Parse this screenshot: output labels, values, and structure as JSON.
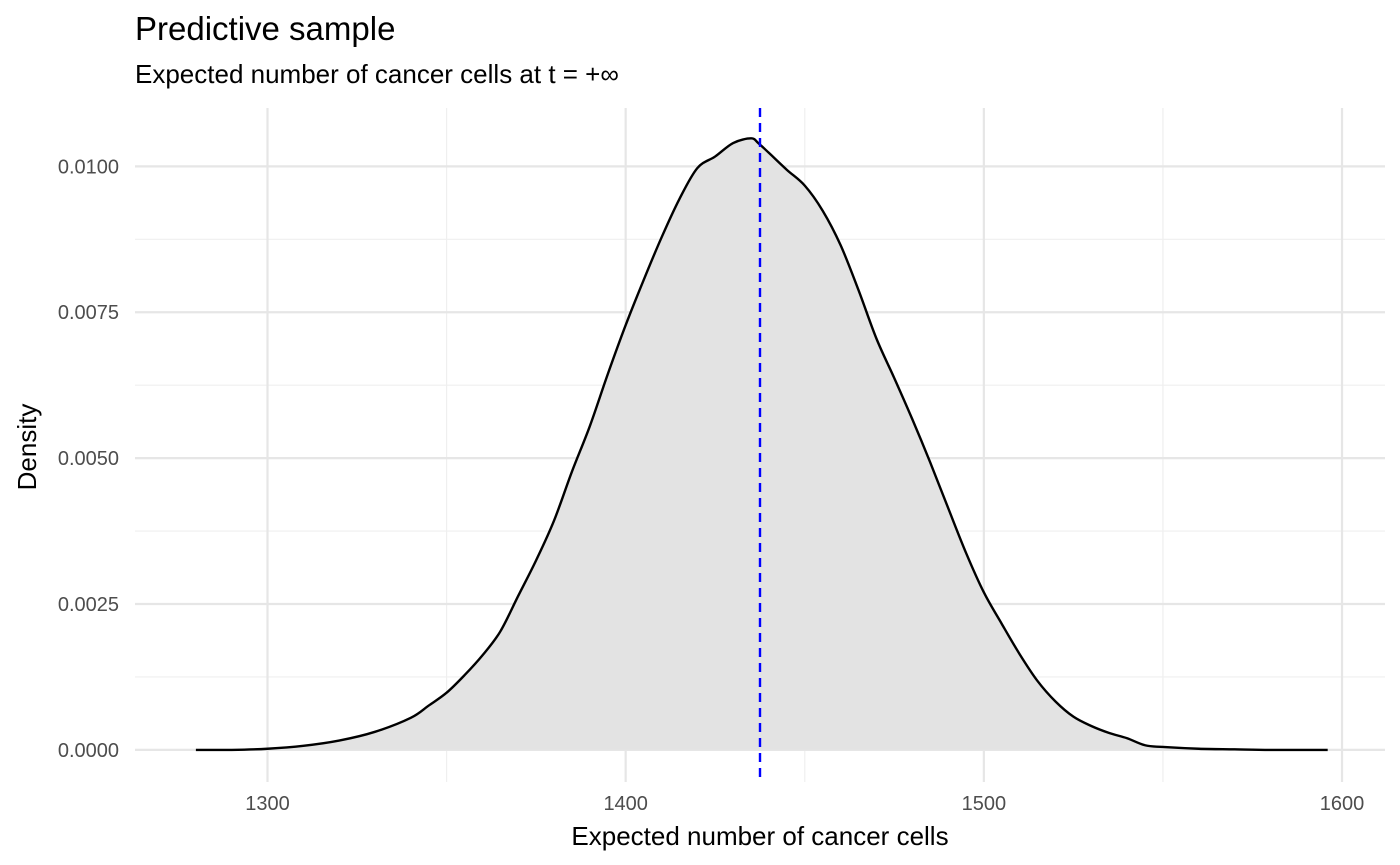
{
  "chart_data": {
    "type": "area",
    "title": "Predictive sample",
    "subtitle": "Expected number of cancer cells at t = +∞",
    "xlabel": "Expected number of cancer cells",
    "ylabel": "Density",
    "xlim": [
      1263,
      1612
    ],
    "ylim": [
      -0.00055,
      0.011
    ],
    "x_ticks": [
      1300,
      1400,
      1500,
      1600
    ],
    "x_tick_labels": [
      "1300",
      "1400",
      "1500",
      "1600"
    ],
    "x_minor_ticks": [
      1350,
      1450,
      1550
    ],
    "y_ticks": [
      0.0,
      0.0025,
      0.005,
      0.0075,
      0.01
    ],
    "y_tick_labels": [
      "0.0000",
      "0.0025",
      "0.0050",
      "0.0075",
      "0.0100"
    ],
    "y_minor_ticks": [
      0.00125,
      0.00375,
      0.00625,
      0.00875
    ],
    "grid": true,
    "legend": "none",
    "fill_color": "#e3e3e3",
    "line_color": "#000000",
    "reference_line": {
      "x": 1437.5,
      "color": "#0000ff",
      "style": "dashed"
    },
    "series": [
      {
        "x": [
          1280,
          1290,
          1300,
          1310,
          1320,
          1330,
          1340,
          1345,
          1350,
          1355,
          1360,
          1365,
          1370,
          1375,
          1380,
          1385,
          1390,
          1395,
          1400,
          1405,
          1410,
          1415,
          1420,
          1425,
          1430,
          1435,
          1437,
          1440,
          1445,
          1450,
          1455,
          1460,
          1465,
          1470,
          1475,
          1480,
          1485,
          1490,
          1495,
          1500,
          1505,
          1510,
          1515,
          1520,
          1525,
          1530,
          1535,
          1540,
          1545,
          1550,
          1560,
          1570,
          1580,
          1596
        ],
        "y": [
          0.0,
          0.0,
          2e-05,
          7e-05,
          0.00016,
          0.00031,
          0.00055,
          0.00076,
          0.00098,
          0.00128,
          0.00162,
          0.00203,
          0.00264,
          0.00325,
          0.00393,
          0.00477,
          0.00555,
          0.00644,
          0.00728,
          0.00805,
          0.00878,
          0.00944,
          0.00997,
          0.01017,
          0.0104,
          0.01048,
          0.0104,
          0.01023,
          0.00994,
          0.00967,
          0.00924,
          0.00865,
          0.00788,
          0.00705,
          0.00637,
          0.00567,
          0.00493,
          0.00415,
          0.00338,
          0.0027,
          0.00216,
          0.00164,
          0.00118,
          0.00083,
          0.00057,
          0.00041,
          0.00029,
          0.0002,
          8e-05,
          5e-05,
          2e-05,
          1e-05,
          0.0,
          0.0
        ]
      }
    ]
  }
}
